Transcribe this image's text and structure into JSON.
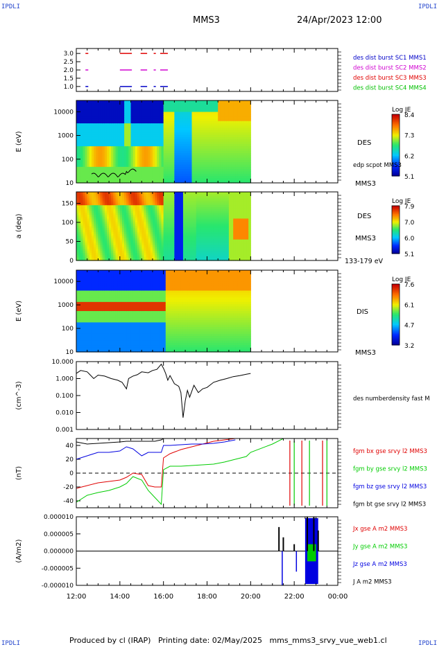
{
  "header": {
    "corner_label": "IPDLI",
    "spacecraft": "MMS3",
    "date_time": "24/Apr/2023 12:00"
  },
  "footer": {
    "produced_by": "Produced by cl (IRAP)",
    "printing_date": "Printing date: 02/May/2025",
    "file": "mms_mms3_srvy_vue_web1.cl"
  },
  "time_axis": {
    "tick_labels": [
      "12:00",
      "14:00",
      "16:00",
      "18:00",
      "20:00",
      "22:00",
      "00:00"
    ],
    "start_hour": 12,
    "end_hour": 24
  },
  "colors": {
    "bx": "#e00000",
    "by": "#00cc00",
    "bz": "#0000e0",
    "bt": "#000000",
    "c1": "#0000c8",
    "c2": "#d000d0",
    "c3": "#e00000",
    "c4": "#00c000"
  },
  "panels": [
    {
      "id": "burst",
      "type": "step-bars",
      "ylabel": "",
      "yticks": [
        "3.0",
        "2.5",
        "2.0",
        "1.5",
        "1.0"
      ],
      "ylim": [
        0.7,
        3.3
      ],
      "legend": [
        {
          "label": "des dist burst SC1 MMS1",
          "color": "#0000c8"
        },
        {
          "label": "des dist burst SC2 MMS2",
          "color": "#d000d0"
        },
        {
          "label": "des dist burst SC3 MMS3",
          "color": "#e00000"
        },
        {
          "label": "des dist burst SC4 MMS4",
          "color": "#00c000"
        }
      ],
      "rows": [
        {
          "y": 3.0,
          "color": "#e00000",
          "segments": [
            [
              12.42,
              12.55
            ],
            [
              14.0,
              14.55
            ],
            [
              14.95,
              15.25
            ],
            [
              15.55,
              15.65
            ],
            [
              15.85,
              16.2
            ]
          ]
        },
        {
          "y": 2.0,
          "color": "#d000d0",
          "segments": [
            [
              12.42,
              12.55
            ],
            [
              14.0,
              14.55
            ],
            [
              14.95,
              15.25
            ],
            [
              15.55,
              15.65
            ],
            [
              15.85,
              16.2
            ]
          ]
        },
        {
          "y": 1.0,
          "color": "#0000c8",
          "segments": [
            [
              12.42,
              12.55
            ],
            [
              14.0,
              14.55
            ],
            [
              14.95,
              15.25
            ],
            [
              15.55,
              15.65
            ],
            [
              15.85,
              16.2
            ]
          ]
        }
      ]
    },
    {
      "id": "des-energy",
      "type": "spectrogram",
      "ylabel": "E (eV)",
      "yscale": "log",
      "yticks": [
        "10000",
        "1000",
        "100",
        "10"
      ],
      "ylim": [
        10,
        30000
      ],
      "right_labels": [
        "DES",
        "edp scpot MMS3",
        "MMS3"
      ],
      "colorbar": {
        "title": "Log JE",
        "ticks": [
          "8.4",
          "7.3",
          "6.2",
          "5.1"
        ]
      }
    },
    {
      "id": "des-pitch",
      "type": "spectrogram",
      "ylabel": "a (deg)",
      "yticks": [
        "150",
        "100",
        "50",
        "0"
      ],
      "ylim": [
        0,
        180
      ],
      "right_labels": [
        "DES",
        "MMS3",
        "133-179 eV"
      ],
      "colorbar": {
        "title": "Log JE",
        "ticks": [
          "7.9",
          "7.0",
          "6.0",
          "5.1"
        ]
      }
    },
    {
      "id": "dis-energy",
      "type": "spectrogram",
      "ylabel": "E (eV)",
      "yscale": "log",
      "yticks": [
        "10000",
        "1000",
        "100",
        "10"
      ],
      "ylim": [
        10,
        30000
      ],
      "right_labels": [
        "DIS",
        "MMS3"
      ],
      "colorbar": {
        "title": "Log JE",
        "ticks": [
          "7.6",
          "6.1",
          "4.7",
          "3.2"
        ]
      }
    },
    {
      "id": "density",
      "type": "line",
      "ylabel": "(cm^-3)",
      "yscale": "log",
      "yticks": [
        "10.000",
        "1.000",
        "0.100",
        "0.010",
        "0.001"
      ],
      "ylim": [
        0.001,
        10
      ],
      "right_labels": [
        "des numberdensity fast M"
      ]
    },
    {
      "id": "bfield",
      "type": "line",
      "ylabel": "(nT)",
      "yticks": [
        "40",
        "20",
        "0",
        "-20",
        "-40"
      ],
      "ylim": [
        -50,
        50
      ],
      "legend": [
        {
          "label": "fgm bx gse srvy l2 MMS3",
          "color": "#e00000"
        },
        {
          "label": "fgm by gse srvy l2 MMS3",
          "color": "#00cc00"
        },
        {
          "label": "fgm bz gse srvy l2 MMS3",
          "color": "#0000e0"
        },
        {
          "label": "fgm bt gse srvy l2 MMS3",
          "color": "#000000"
        }
      ]
    },
    {
      "id": "current",
      "type": "line",
      "ylabel": "(A/m2)",
      "yticks": [
        "0.000010",
        "0.000005",
        "0.000000",
        "-0.000005",
        "-0.000010"
      ],
      "ylim": [
        -1e-05,
        1e-05
      ],
      "legend": [
        {
          "label": "Jx gse A m2 MMS3",
          "color": "#e00000"
        },
        {
          "label": "Jy gse A m2 MMS3",
          "color": "#00cc00"
        },
        {
          "label": "Jz gse A m2 MMS3",
          "color": "#0000e0"
        },
        {
          "label": "J A m2 MMS3",
          "color": "#000000"
        }
      ]
    }
  ],
  "chart_data": [
    {
      "type": "line",
      "title": "des numberdensity fast M",
      "ylabel": "(cm^-3)",
      "yscale": "log",
      "ylim": [
        0.001,
        10
      ],
      "x": [
        12.0,
        12.2,
        12.5,
        12.8,
        13.0,
        13.3,
        13.6,
        13.9,
        14.1,
        14.3,
        14.4,
        14.6,
        14.8,
        15.0,
        15.3,
        15.5,
        15.7,
        15.9,
        16.0,
        16.1,
        16.2,
        16.3,
        16.5,
        16.7,
        16.8,
        16.9,
        17.0,
        17.1,
        17.2,
        17.4,
        17.6,
        17.8,
        18.0,
        18.3,
        18.6,
        18.9,
        19.2,
        19.5,
        19.8,
        20.0
      ],
      "y": [
        2.0,
        3.0,
        2.5,
        1.0,
        1.6,
        1.4,
        1.0,
        0.8,
        0.6,
        0.25,
        1.0,
        1.4,
        1.7,
        2.5,
        2.2,
        3.0,
        3.5,
        7.0,
        4.0,
        2.0,
        0.8,
        1.5,
        0.5,
        0.35,
        0.15,
        0.005,
        0.05,
        0.2,
        0.08,
        0.4,
        0.15,
        0.25,
        0.3,
        0.6,
        0.8,
        1.0,
        1.3,
        1.5,
        1.8,
        2.0
      ]
    },
    {
      "type": "line",
      "title": "fgm b gse srvy l2 MMS3",
      "ylabel": "(nT)",
      "ylim": [
        -50,
        50
      ],
      "x": [
        12.0,
        12.5,
        13.0,
        13.5,
        14.0,
        14.3,
        14.6,
        15.0,
        15.3,
        15.6,
        15.9,
        16.0,
        16.3,
        16.8,
        17.3,
        17.8,
        18.3,
        18.8,
        19.3,
        19.8,
        20.0,
        21.0,
        21.5
      ],
      "series": [
        {
          "name": "fgm bx gse srvy l2 MMS3",
          "values": [
            -22,
            -18,
            -14,
            -12,
            -10,
            -6,
            0,
            -2,
            -18,
            -20,
            -20,
            22,
            28,
            34,
            38,
            42,
            46,
            48,
            50,
            null,
            null,
            null,
            null
          ]
        },
        {
          "name": "fgm by gse srvy l2 MMS3",
          "values": [
            -42,
            -32,
            -28,
            -25,
            -20,
            -15,
            -5,
            -10,
            -25,
            -35,
            -45,
            5,
            10,
            10,
            11,
            12,
            13,
            16,
            20,
            24,
            30,
            42,
            50
          ]
        },
        {
          "name": "fgm bz gse srvy l2 MMS3",
          "values": [
            20,
            25,
            30,
            30,
            32,
            38,
            35,
            25,
            30,
            30,
            30,
            40,
            40,
            41,
            42,
            42,
            43,
            45,
            48,
            null,
            null,
            null,
            null
          ]
        },
        {
          "name": "fgm bt gse srvy l2 MMS3",
          "values": [
            45,
            42,
            43,
            44,
            45,
            46,
            46,
            46,
            46,
            46,
            48,
            50,
            50,
            null,
            null,
            null,
            null,
            null,
            null,
            null,
            null,
            null,
            null
          ]
        }
      ]
    }
  ]
}
